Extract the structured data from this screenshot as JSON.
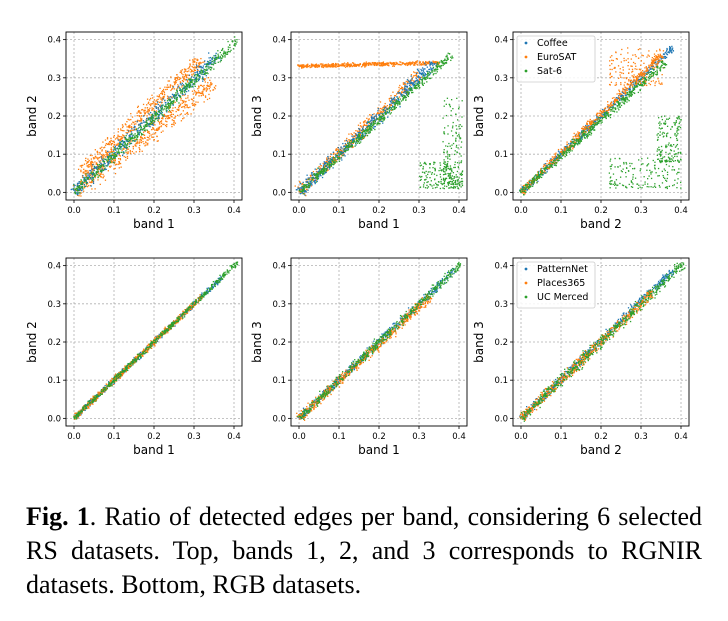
{
  "colors": {
    "blue": "#1f77b4",
    "orange": "#ff7f0e",
    "green": "#2ca02c",
    "grid": "#b0b0b0"
  },
  "caption": {
    "label": "Fig. 1",
    "text": ".  Ratio of detected edges per band, considering 6 selected RS datasets.  Top, bands 1, 2, and 3 corresponds to RGNIR datasets. Bottom, RGB datasets."
  },
  "chart_data": [
    {
      "type": "scatter",
      "xlabel": "band 1",
      "ylabel": "band 2",
      "xlim": [
        -0.02,
        0.42
      ],
      "ylim": [
        -0.02,
        0.42
      ],
      "xticks": [
        "0.0",
        "0.1",
        "0.2",
        "0.3",
        "0.4"
      ],
      "yticks": [
        "0.0",
        "0.1",
        "0.2",
        "0.3",
        "0.4"
      ],
      "grid": true,
      "legend": null,
      "series": [
        {
          "color": "orange",
          "clusters": [
            {
              "shape": "band",
              "x": [
                0.0,
                0.35
              ],
              "y": [
                0.0,
                0.29
              ],
              "spread": 0.05
            },
            {
              "shape": "band",
              "x": [
                0.02,
                0.32
              ],
              "y": [
                0.05,
                0.35
              ],
              "spread": 0.04
            }
          ]
        },
        {
          "color": "blue",
          "clusters": [
            {
              "shape": "band",
              "x": [
                0.0,
                0.36
              ],
              "y": [
                0.0,
                0.36
              ],
              "spread": 0.035
            }
          ]
        },
        {
          "color": "green",
          "clusters": [
            {
              "shape": "band",
              "x": [
                0.0,
                0.41
              ],
              "y": [
                0.0,
                0.4
              ],
              "spread": 0.025
            }
          ]
        }
      ]
    },
    {
      "type": "scatter",
      "xlabel": "band 1",
      "ylabel": "band 3",
      "xlim": [
        -0.02,
        0.42
      ],
      "ylim": [
        -0.02,
        0.42
      ],
      "xticks": [
        "0.0",
        "0.1",
        "0.2",
        "0.3",
        "0.4"
      ],
      "yticks": [
        "0.0",
        "0.1",
        "0.2",
        "0.3",
        "0.4"
      ],
      "grid": true,
      "legend": null,
      "series": [
        {
          "color": "orange",
          "clusters": [
            {
              "shape": "band",
              "x": [
                0.0,
                0.35
              ],
              "y": [
                0.33,
                0.34
              ],
              "spread": 0.015
            },
            {
              "shape": "band",
              "x": [
                0.0,
                0.3
              ],
              "y": [
                0.0,
                0.31
              ],
              "spread": 0.03
            }
          ]
        },
        {
          "color": "blue",
          "clusters": [
            {
              "shape": "band",
              "x": [
                0.0,
                0.34
              ],
              "y": [
                0.0,
                0.34
              ],
              "spread": 0.03
            }
          ]
        },
        {
          "color": "green",
          "clusters": [
            {
              "shape": "band",
              "x": [
                0.0,
                0.38
              ],
              "y": [
                0.0,
                0.36
              ],
              "spread": 0.02
            },
            {
              "shape": "blob",
              "x": [
                0.3,
                0.41
              ],
              "y": [
                0.01,
                0.08
              ]
            },
            {
              "shape": "blob",
              "x": [
                0.36,
                0.41
              ],
              "y": [
                0.02,
                0.25
              ]
            }
          ]
        }
      ]
    },
    {
      "type": "scatter",
      "xlabel": "band 2",
      "ylabel": "band 3",
      "xlim": [
        -0.02,
        0.42
      ],
      "ylim": [
        -0.02,
        0.42
      ],
      "xticks": [
        "0.0",
        "0.1",
        "0.2",
        "0.3",
        "0.4"
      ],
      "yticks": [
        "0.0",
        "0.1",
        "0.2",
        "0.3",
        "0.4"
      ],
      "grid": true,
      "legend": "top-left",
      "legend_entries": [
        "Coffee",
        "EuroSAT",
        "Sat-6"
      ],
      "series": [
        {
          "name": "Coffee",
          "color": "blue",
          "clusters": [
            {
              "shape": "band",
              "x": [
                0.0,
                0.38
              ],
              "y": [
                0.0,
                0.38
              ],
              "spread": 0.018
            }
          ]
        },
        {
          "name": "EuroSAT",
          "color": "orange",
          "clusters": [
            {
              "shape": "band",
              "x": [
                0.0,
                0.35
              ],
              "y": [
                0.0,
                0.36
              ],
              "spread": 0.02
            },
            {
              "shape": "blob",
              "x": [
                0.22,
                0.36
              ],
              "y": [
                0.28,
                0.38
              ]
            }
          ]
        },
        {
          "name": "Sat-6",
          "color": "green",
          "clusters": [
            {
              "shape": "band",
              "x": [
                0.0,
                0.36
              ],
              "y": [
                0.0,
                0.34
              ],
              "spread": 0.02
            },
            {
              "shape": "blob",
              "x": [
                0.22,
                0.4
              ],
              "y": [
                0.01,
                0.09
              ]
            },
            {
              "shape": "blob",
              "x": [
                0.34,
                0.4
              ],
              "y": [
                0.08,
                0.2
              ]
            }
          ]
        }
      ]
    },
    {
      "type": "scatter",
      "xlabel": "band 1",
      "ylabel": "band 2",
      "xlim": [
        -0.02,
        0.42
      ],
      "ylim": [
        -0.02,
        0.42
      ],
      "xticks": [
        "0.0",
        "0.1",
        "0.2",
        "0.3",
        "0.4"
      ],
      "yticks": [
        "0.0",
        "0.1",
        "0.2",
        "0.3",
        "0.4"
      ],
      "grid": true,
      "legend": null,
      "series": [
        {
          "color": "blue",
          "clusters": [
            {
              "shape": "band",
              "x": [
                0.0,
                0.37
              ],
              "y": [
                0.0,
                0.37
              ],
              "spread": 0.012
            }
          ]
        },
        {
          "color": "orange",
          "clusters": [
            {
              "shape": "band",
              "x": [
                0.0,
                0.32
              ],
              "y": [
                0.0,
                0.32
              ],
              "spread": 0.014
            }
          ]
        },
        {
          "color": "green",
          "clusters": [
            {
              "shape": "band",
              "x": [
                0.0,
                0.41
              ],
              "y": [
                0.0,
                0.41
              ],
              "spread": 0.012
            }
          ]
        }
      ]
    },
    {
      "type": "scatter",
      "xlabel": "band 1",
      "ylabel": "band 3",
      "xlim": [
        -0.02,
        0.42
      ],
      "ylim": [
        -0.02,
        0.42
      ],
      "xticks": [
        "0.0",
        "0.1",
        "0.2",
        "0.3",
        "0.4"
      ],
      "yticks": [
        "0.0",
        "0.1",
        "0.2",
        "0.3",
        "0.4"
      ],
      "grid": true,
      "legend": null,
      "series": [
        {
          "color": "blue",
          "clusters": [
            {
              "shape": "band",
              "x": [
                0.0,
                0.39
              ],
              "y": [
                0.0,
                0.39
              ],
              "spread": 0.018
            }
          ]
        },
        {
          "color": "orange",
          "clusters": [
            {
              "shape": "band",
              "x": [
                0.0,
                0.33
              ],
              "y": [
                0.0,
                0.32
              ],
              "spread": 0.022
            }
          ]
        },
        {
          "color": "green",
          "clusters": [
            {
              "shape": "band",
              "x": [
                0.0,
                0.41
              ],
              "y": [
                0.0,
                0.41
              ],
              "spread": 0.02
            }
          ]
        }
      ]
    },
    {
      "type": "scatter",
      "xlabel": "band 2",
      "ylabel": "band 3",
      "xlim": [
        -0.02,
        0.42
      ],
      "ylim": [
        -0.02,
        0.42
      ],
      "xticks": [
        "0.0",
        "0.1",
        "0.2",
        "0.3",
        "0.4"
      ],
      "yticks": [
        "0.0",
        "0.1",
        "0.2",
        "0.3",
        "0.4"
      ],
      "grid": true,
      "legend": "top-left",
      "legend_entries": [
        "PatternNet",
        "Places365",
        "UC Merced"
      ],
      "series": [
        {
          "name": "PatternNet",
          "color": "blue",
          "clusters": [
            {
              "shape": "band",
              "x": [
                0.0,
                0.38
              ],
              "y": [
                0.0,
                0.39
              ],
              "spread": 0.018
            }
          ]
        },
        {
          "name": "Places365",
          "color": "orange",
          "clusters": [
            {
              "shape": "band",
              "x": [
                0.0,
                0.33
              ],
              "y": [
                0.0,
                0.33
              ],
              "spread": 0.022
            }
          ]
        },
        {
          "name": "UC Merced",
          "color": "green",
          "clusters": [
            {
              "shape": "band",
              "x": [
                0.0,
                0.41
              ],
              "y": [
                0.0,
                0.41
              ],
              "spread": 0.025
            }
          ]
        }
      ]
    }
  ]
}
